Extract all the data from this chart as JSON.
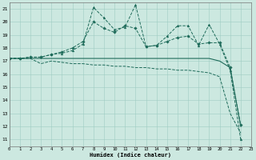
{
  "xlabel": "Humidex (Indice chaleur)",
  "xlim": [
    0,
    23
  ],
  "ylim": [
    10.5,
    21.5
  ],
  "yticks": [
    11,
    12,
    13,
    14,
    15,
    16,
    17,
    18,
    19,
    20,
    21
  ],
  "xticks": [
    0,
    1,
    2,
    3,
    4,
    5,
    6,
    7,
    8,
    9,
    10,
    11,
    12,
    13,
    14,
    15,
    16,
    17,
    18,
    19,
    20,
    21,
    22,
    23
  ],
  "background_color": "#cce8e0",
  "grid_color": "#9ecdc2",
  "line_color": "#1e6b5a",
  "line1": {
    "x": [
      0,
      1,
      2,
      3,
      4,
      5,
      6,
      7,
      8,
      9,
      10,
      11,
      12,
      13,
      14,
      15,
      16,
      17,
      18,
      19,
      20,
      21,
      22
    ],
    "y": [
      17.2,
      17.2,
      17.3,
      17.3,
      17.5,
      17.6,
      17.8,
      18.3,
      21.1,
      20.3,
      19.4,
      19.6,
      21.3,
      18.1,
      18.2,
      18.9,
      19.7,
      19.7,
      18.2,
      19.8,
      18.3,
      16.3,
      11.0
    ],
    "marker": "^",
    "linestyle": "--"
  },
  "line2": {
    "x": [
      0,
      1,
      2,
      3,
      4,
      5,
      6,
      7,
      8,
      9,
      10,
      11,
      12,
      13,
      14,
      15,
      16,
      17,
      18,
      19,
      20,
      21,
      22
    ],
    "y": [
      17.2,
      17.2,
      17.3,
      17.3,
      17.5,
      17.7,
      18.0,
      18.5,
      20.0,
      19.5,
      19.2,
      19.7,
      19.5,
      18.1,
      18.2,
      18.5,
      18.8,
      18.9,
      18.3,
      18.4,
      18.4,
      16.5,
      12.1
    ],
    "marker": "D",
    "linestyle": "--"
  },
  "line3": {
    "x": [
      0,
      1,
      2,
      3,
      4,
      5,
      6,
      7,
      8,
      9,
      10,
      11,
      12,
      13,
      14,
      15,
      16,
      17,
      18,
      19,
      20,
      21,
      22
    ],
    "y": [
      17.2,
      17.2,
      17.2,
      17.2,
      17.2,
      17.2,
      17.2,
      17.2,
      17.2,
      17.2,
      17.2,
      17.2,
      17.2,
      17.2,
      17.2,
      17.2,
      17.2,
      17.2,
      17.2,
      17.2,
      17.0,
      16.5,
      12.0
    ],
    "marker": null,
    "linestyle": "-"
  },
  "line4": {
    "x": [
      0,
      1,
      2,
      3,
      4,
      5,
      6,
      7,
      8,
      9,
      10,
      11,
      12,
      13,
      14,
      15,
      16,
      17,
      18,
      19,
      20,
      21,
      22
    ],
    "y": [
      17.2,
      17.2,
      17.2,
      16.8,
      17.0,
      16.9,
      16.8,
      16.8,
      16.7,
      16.7,
      16.6,
      16.6,
      16.5,
      16.5,
      16.4,
      16.4,
      16.3,
      16.3,
      16.2,
      16.1,
      15.8,
      13.0,
      11.5
    ],
    "marker": null,
    "linestyle": "--"
  }
}
